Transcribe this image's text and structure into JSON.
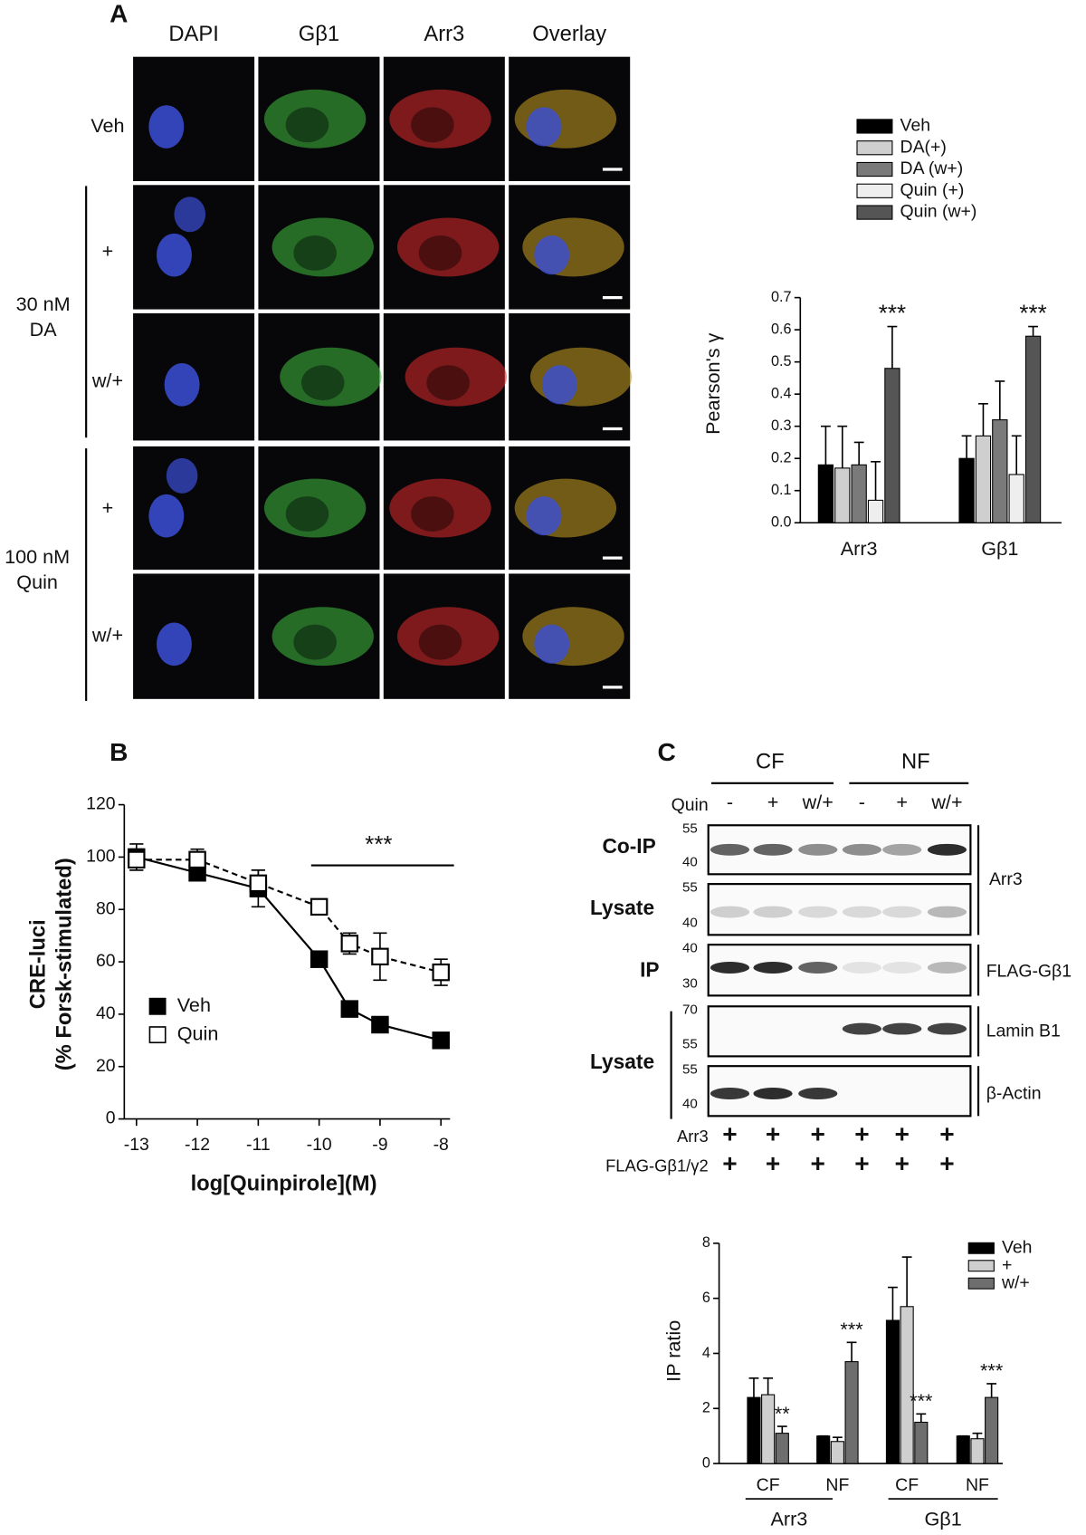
{
  "figure": {
    "panel_labels": [
      "A",
      "B",
      "C"
    ],
    "panel_a": {
      "columns": [
        "DAPI",
        "Gβ1",
        "Arr3",
        "Overlay"
      ],
      "rows": [
        "Veh",
        "+",
        "w/+",
        "+",
        "w/+"
      ],
      "groups": [
        [
          "30 nM",
          "DA"
        ],
        [
          "100 nM",
          "Quin"
        ]
      ]
    },
    "panel_c_blot": {
      "fractions": [
        "CF",
        "NF"
      ],
      "treatment_label": "Quin",
      "treatments": [
        "-",
        "+",
        "w/+",
        "-",
        "+",
        "w/+"
      ],
      "left_labels": [
        "Co-IP",
        "Lysate",
        "IP",
        "Lysate"
      ],
      "mw_markers": [
        [
          "55",
          "40"
        ],
        [
          "55",
          "40"
        ],
        [
          "40",
          "30"
        ],
        [
          "70",
          "55"
        ],
        [
          "55",
          "40"
        ]
      ],
      "right_labels": [
        "Arr3",
        "FLAG-Gβ1",
        "Lamin B1",
        "β-Actin"
      ],
      "transfections": [
        {
          "label": "Arr3",
          "lanes": [
            "+",
            "+",
            "+",
            "+",
            "+",
            "+"
          ]
        },
        {
          "label": "FLAG-Gβ1/γ2",
          "lanes": [
            "+",
            "+",
            "+",
            "+",
            "+",
            "+"
          ]
        }
      ]
    }
  },
  "chart_data": [
    {
      "type": "bar",
      "y_label": "Pearson's γ",
      "categories": [
        "Arr3",
        "Gβ1"
      ],
      "series": [
        {
          "name": "Veh",
          "color": "#000000",
          "values": [
            0.18,
            0.2
          ],
          "errors": [
            0.12,
            0.07
          ]
        },
        {
          "name": "DA(+)",
          "color": "#cfcfcf",
          "values": [
            0.17,
            0.27
          ],
          "errors": [
            0.13,
            0.1
          ]
        },
        {
          "name": "DA (w+)",
          "color": "#7a7a7a",
          "values": [
            0.18,
            0.32
          ],
          "errors": [
            0.07,
            0.12
          ]
        },
        {
          "name": "Quin (+)",
          "color": "#eeeeee",
          "values": [
            0.07,
            0.15
          ],
          "errors": [
            0.12,
            0.12
          ]
        },
        {
          "name": "Quin (w+)",
          "color": "#555555",
          "values": [
            0.48,
            0.58
          ],
          "errors": [
            0.13,
            0.03
          ]
        }
      ],
      "annotations": [
        "***",
        "***"
      ],
      "ylim": [
        0,
        0.7
      ],
      "yticks": [
        {
          "value": 0,
          "label": "0.0"
        },
        0.1,
        0.2,
        0.3,
        0.4,
        0.5,
        0.6,
        0.7
      ]
    },
    {
      "type": "line",
      "x_label": "log[Quinpirole](M)",
      "y_label": [
        "CRE-luci",
        "(% Forsk-stimulated)"
      ],
      "x": [
        -13,
        -12,
        -11,
        -10,
        -9.5,
        -9,
        -8
      ],
      "series": [
        {
          "name": "Veh",
          "color": "#000000",
          "dash": false,
          "values": [
            100,
            94,
            88,
            61,
            42,
            36,
            30
          ],
          "errors": [
            5,
            2,
            7,
            1,
            1,
            1,
            1
          ]
        },
        {
          "name": "Quin",
          "color": "#ffffff",
          "dash": true,
          "values": [
            99,
            99,
            90,
            81,
            67,
            62,
            56
          ],
          "errors": [
            4,
            4,
            5,
            2,
            4,
            9,
            5
          ]
        }
      ],
      "annotations": [
        "***"
      ],
      "xlim": [
        -13.2,
        -7.85
      ],
      "xticks": [
        -13,
        -12,
        -11,
        -10,
        -9,
        -8
      ],
      "ylim": [
        0,
        120
      ],
      "yticks": [
        0,
        20,
        40,
        60,
        80,
        100,
        120
      ]
    },
    {
      "type": "bar",
      "y_label": "IP ratio",
      "categories": [
        "CF",
        "NF",
        "CF",
        "NF"
      ],
      "group_labels": [
        "Arr3",
        "Gβ1"
      ],
      "series": [
        {
          "name": "Veh",
          "color": "#000000",
          "values": [
            2.4,
            1.0,
            5.2,
            1.0
          ],
          "errors": [
            0.7,
            0,
            1.2,
            0
          ]
        },
        {
          "name": "+",
          "color": "#cfcfcf",
          "values": [
            2.5,
            0.8,
            5.7,
            0.9
          ],
          "errors": [
            0.6,
            0.15,
            1.8,
            0.2
          ]
        },
        {
          "name": "w/+",
          "color": "#6e6e6e",
          "values": [
            1.1,
            3.7,
            1.5,
            2.4
          ],
          "errors": [
            0.25,
            0.7,
            0.3,
            0.5
          ]
        }
      ],
      "annotations": [
        "**",
        "***",
        "***",
        "***"
      ],
      "ylim": [
        0,
        8
      ],
      "yticks": [
        0,
        2,
        4,
        6,
        8
      ]
    }
  ]
}
